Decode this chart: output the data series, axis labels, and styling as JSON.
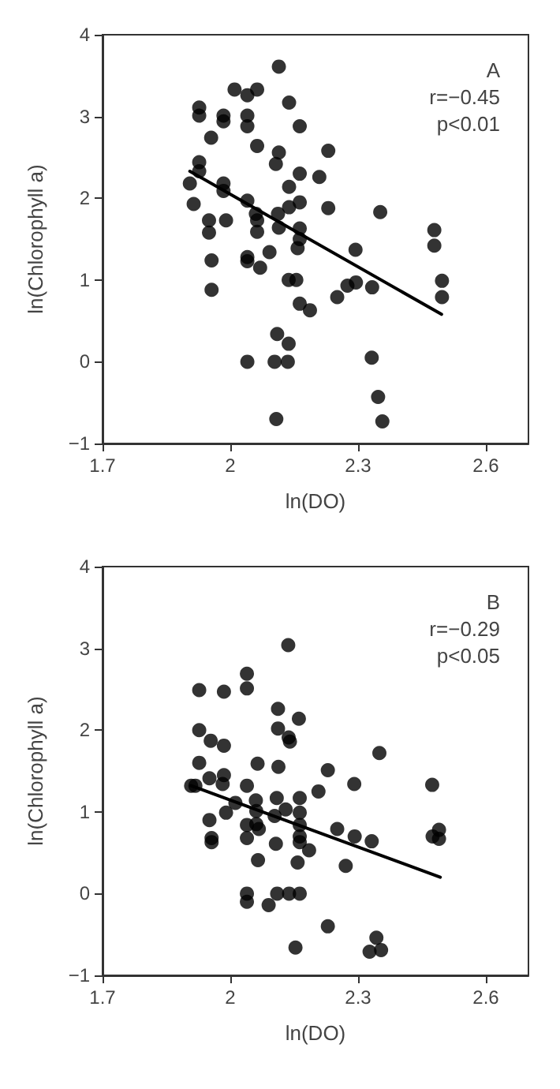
{
  "chart_data": [
    {
      "type": "scatter",
      "xlabel": "ln(DO)",
      "ylabel": "ln(Chlorophyll a)",
      "annotations": [
        "A",
        "r=−0.45",
        "p<0.01"
      ],
      "xlim": [
        1.7,
        2.7
      ],
      "ylim": [
        -1,
        4
      ],
      "xticks": [
        1.7,
        2,
        2.3,
        2.6
      ],
      "yticks": [
        -1,
        0,
        1,
        2,
        3,
        4
      ],
      "marker": "circle",
      "grid": false,
      "series": [
        {
          "color": "#000000",
          "x": [
            1.905,
            1.914,
            1.927,
            1.927,
            1.927,
            1.927,
            1.95,
            1.95,
            1.955,
            1.956,
            1.956,
            1.984,
            1.984,
            1.984,
            1.984,
            1.99,
            2.01,
            2.04,
            2.04,
            2.04,
            2.04,
            2.04,
            2.04,
            2.04,
            2.063,
            2.063,
            2.06,
            2.063,
            2.063,
            2.07,
            2.092,
            2.107,
            2.114,
            2.114,
            2.112,
            2.114,
            2.11,
            2.104,
            2.108,
            2.138,
            2.138,
            2.138,
            2.137,
            2.137,
            2.135,
            2.155,
            2.163,
            2.163,
            2.163,
            2.163,
            2.163,
            2.158,
            2.163,
            2.187,
            2.209,
            2.23,
            2.23,
            2.251,
            2.275,
            2.295,
            2.294,
            2.333,
            2.332,
            2.347,
            2.357,
            2.352,
            2.479,
            2.479,
            2.497,
            2.497
          ],
          "values": [
            2.18,
            1.93,
            3.11,
            3.01,
            2.44,
            2.33,
            1.73,
            1.58,
            2.74,
            1.24,
            0.88,
            3.01,
            2.94,
            2.18,
            2.09,
            1.73,
            3.33,
            3.26,
            3.01,
            2.88,
            1.97,
            1.28,
            1.23,
            0,
            3.33,
            2.64,
            1.81,
            1.73,
            1.59,
            1.15,
            1.34,
            2.42,
            3.61,
            2.56,
            1.81,
            1.64,
            0.34,
            0,
            -0.7,
            3.17,
            2.14,
            1.89,
            1.0,
            0.22,
            0,
            1.0,
            2.88,
            2.3,
            1.95,
            1.63,
            1.5,
            1.39,
            0.71,
            0.63,
            2.26,
            2.58,
            1.88,
            0.79,
            0.93,
            0.97,
            1.37,
            0.91,
            0.05,
            -0.43,
            -0.73,
            1.83,
            1.61,
            1.42,
            0.99,
            0.79
          ]
        },
        {
          "type": "line",
          "color": "#000000",
          "marker": "none",
          "line_style": "solid",
          "x": [
            1.905,
            2.496
          ],
          "values": [
            2.33,
            0.58
          ]
        }
      ]
    },
    {
      "type": "scatter",
      "xlabel": "ln(DO)",
      "ylabel": "ln(Chlorophyll a)",
      "annotations": [
        "B",
        "r=−0.29",
        "p<0.05"
      ],
      "xlim": [
        1.7,
        2.7
      ],
      "ylim": [
        -1,
        4
      ],
      "xticks": [
        1.7,
        2,
        2.3,
        2.6
      ],
      "yticks": [
        -1,
        0,
        1,
        2,
        3,
        4
      ],
      "marker": "circle",
      "grid": false,
      "series": [
        {
          "color": "#000000",
          "x": [
            1.908,
            1.918,
            1.927,
            1.927,
            1.927,
            1.951,
            1.954,
            1.951,
            1.956,
            1.956,
            1.985,
            1.985,
            1.985,
            1.982,
            1.99,
            2.012,
            2.039,
            2.039,
            2.039,
            2.039,
            2.039,
            2.039,
            2.039,
            2.064,
            2.06,
            2.061,
            2.061,
            2.067,
            2.065,
            2.09,
            2.112,
            2.112,
            2.113,
            2.109,
            2.104,
            2.107,
            2.11,
            2.136,
            2.137,
            2.14,
            2.13,
            2.138,
            2.161,
            2.163,
            2.163,
            2.163,
            2.163,
            2.163,
            2.158,
            2.163,
            2.153,
            2.185,
            2.207,
            2.229,
            2.229,
            2.251,
            2.271,
            2.291,
            2.292,
            2.332,
            2.327,
            2.343,
            2.354,
            2.35,
            2.474,
            2.475,
            2.49,
            2.49
          ],
          "values": [
            1.32,
            1.32,
            2.49,
            2.0,
            1.6,
            0.9,
            1.87,
            1.41,
            0.68,
            0.63,
            2.47,
            1.81,
            1.45,
            1.34,
            0.99,
            1.11,
            2.69,
            2.51,
            1.32,
            0.84,
            0.68,
            0,
            -0.1,
            1.59,
            1.14,
            1.01,
            0.85,
            0.79,
            0.41,
            -0.14,
            2.26,
            2.02,
            1.55,
            1.17,
            0.95,
            0.61,
            0,
            3.04,
            1.91,
            1.86,
            1.03,
            0,
            2.14,
            1.17,
            0.99,
            0.84,
            0.7,
            0.63,
            0.38,
            0,
            -0.66,
            0.53,
            1.25,
            1.51,
            -0.4,
            0.79,
            0.34,
            1.34,
            0.7,
            0.64,
            -0.71,
            -0.54,
            -0.69,
            1.72,
            1.33,
            0.7,
            0.78,
            0.67
          ]
        },
        {
          "type": "line",
          "color": "#000000",
          "marker": "none",
          "line_style": "solid",
          "x": [
            1.908,
            2.493
          ],
          "values": [
            1.32,
            0.2
          ]
        }
      ]
    }
  ]
}
